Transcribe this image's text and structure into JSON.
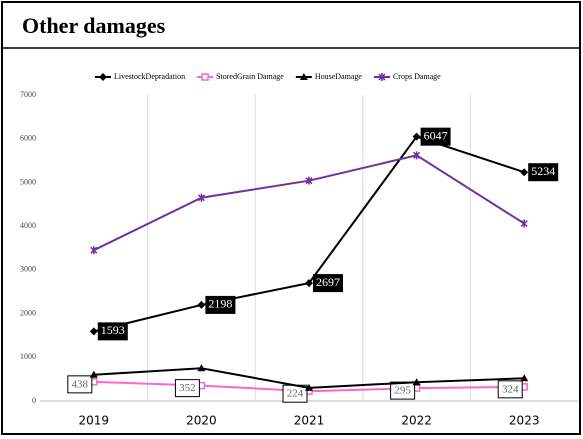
{
  "chart_data": {
    "type": "line",
    "title": "Other damages",
    "categories": [
      "2019",
      "2020",
      "2021",
      "2022",
      "2023"
    ],
    "series": [
      {
        "name": "LivestockDepradation",
        "color": "#000000",
        "marker": "diamond",
        "values": [
          1593,
          2198,
          2697,
          6047,
          5234
        ],
        "labels": "dark"
      },
      {
        "name": "StoredGrain Damage",
        "color": "#ff66cc",
        "marker": "square",
        "values": [
          438,
          352,
          224,
          295,
          324
        ],
        "labels": "light"
      },
      {
        "name": "HouseDamage",
        "color": "#000000",
        "marker": "triangle",
        "values": [
          600,
          750,
          300,
          430,
          520
        ]
      },
      {
        "name": "Crops Damage",
        "color": "#7030a0",
        "marker": "star",
        "values": [
          3450,
          4650,
          5040,
          5620,
          4060
        ]
      }
    ],
    "ylim": [
      0,
      7000
    ],
    "yticks": [
      0,
      1000,
      2000,
      3000,
      4000,
      5000,
      6000,
      7000
    ],
    "grid": true,
    "legend": "top"
  }
}
